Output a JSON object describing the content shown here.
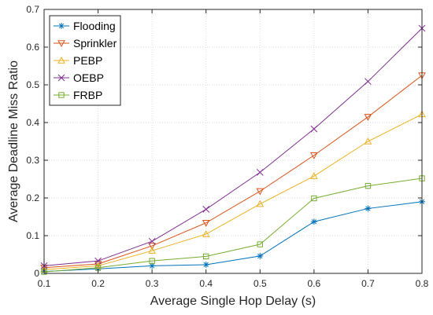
{
  "chart_data": {
    "type": "line",
    "title": "",
    "xlabel": "Average Single Hop Delay (s)",
    "ylabel": "Average Deadline Miss Ratio",
    "x": [
      0.1,
      0.2,
      0.3,
      0.4,
      0.5,
      0.6,
      0.7,
      0.8
    ],
    "xlim": [
      0.1,
      0.8
    ],
    "ylim": [
      0,
      0.7
    ],
    "xticks": [
      "0.1",
      "0.2",
      "0.3",
      "0.4",
      "0.5",
      "0.6",
      "0.7",
      "0.8"
    ],
    "yticks": [
      "0",
      "0.1",
      "0.2",
      "0.3",
      "0.4",
      "0.5",
      "0.6",
      "0.7"
    ],
    "grid": true,
    "legend_position": "top-left",
    "series": [
      {
        "name": "Flooding",
        "color": "#0072bd",
        "marker": "asterisk",
        "values": [
          0.005,
          0.012,
          0.02,
          0.023,
          0.046,
          0.137,
          0.172,
          0.19
        ]
      },
      {
        "name": "Sprinkler",
        "color": "#d95319",
        "marker": "triangle-down",
        "values": [
          0.015,
          0.025,
          0.073,
          0.134,
          0.218,
          0.313,
          0.415,
          0.525
        ]
      },
      {
        "name": "PEBP",
        "color": "#edb120",
        "marker": "triangle-up",
        "values": [
          0.01,
          0.02,
          0.06,
          0.104,
          0.184,
          0.258,
          0.35,
          0.422
        ]
      },
      {
        "name": "OEBP",
        "color": "#7e2f8e",
        "marker": "x",
        "values": [
          0.02,
          0.033,
          0.085,
          0.17,
          0.268,
          0.383,
          0.509,
          0.65
        ]
      },
      {
        "name": "FRBP",
        "color": "#77ac30",
        "marker": "square",
        "values": [
          0.004,
          0.015,
          0.033,
          0.045,
          0.077,
          0.199,
          0.232,
          0.252
        ]
      }
    ]
  }
}
